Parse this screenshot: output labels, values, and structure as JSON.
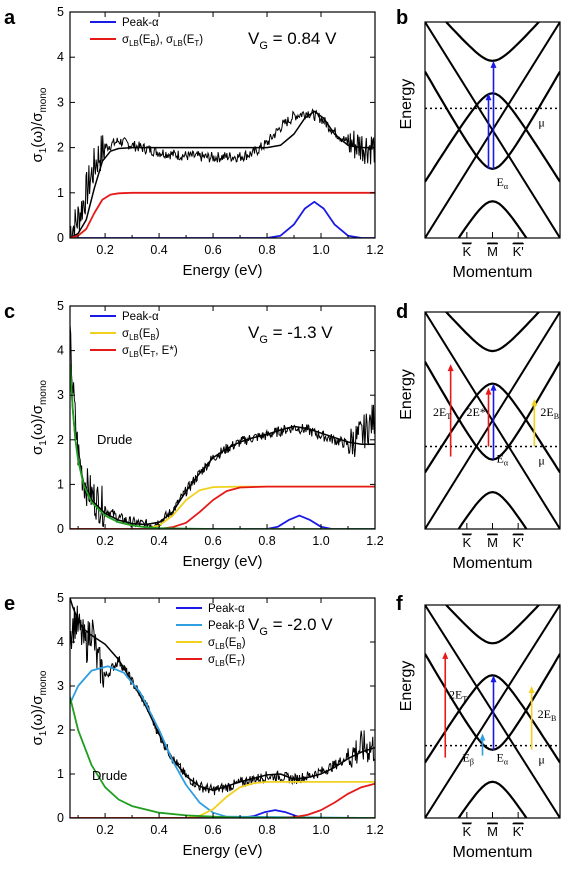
{
  "colors": {
    "black": "#000000",
    "blue": "#1a1ae6",
    "red": "#e61919",
    "yellow": "#f0d21e",
    "green": "#1f9e1f",
    "cyan": "#2f9fe0"
  },
  "chart_data": [
    {
      "panel": "a",
      "type": "line",
      "xlabel": "Energy (eV)",
      "ylabel": "σ1(ω)/σmono",
      "xlim": [
        0.07,
        1.2
      ],
      "ylim": [
        0,
        5
      ],
      "xticks": [
        "0.2",
        "0.4",
        "0.6",
        "0.8",
        "1.0",
        "1.2"
      ],
      "yticks": [
        "0",
        "1",
        "2",
        "3",
        "4",
        "5"
      ],
      "annotation": "VG = 0.84 V",
      "legend": [
        "Peak-α",
        "σLB(EB), σLB(ET)"
      ],
      "series": [
        {
          "name": "Peak-α",
          "color": "blue",
          "x": [
            0.07,
            0.8,
            0.85,
            0.9,
            0.94,
            0.975,
            1.01,
            1.05,
            1.1,
            1.15,
            1.2
          ],
          "y": [
            0,
            0,
            0.05,
            0.3,
            0.65,
            0.8,
            0.65,
            0.3,
            0.05,
            0,
            0
          ]
        },
        {
          "name": "σLB(EB), σLB(ET)",
          "color": "red",
          "x": [
            0.07,
            0.1,
            0.13,
            0.16,
            0.19,
            0.22,
            0.25,
            0.3,
            0.4,
            1.2
          ],
          "y": [
            0,
            0.05,
            0.2,
            0.55,
            0.85,
            0.96,
            0.99,
            1.0,
            1.0,
            1.0
          ]
        },
        {
          "name": "fit",
          "color": "black",
          "x": [
            0.07,
            0.1,
            0.13,
            0.16,
            0.19,
            0.22,
            0.25,
            0.3,
            0.4,
            0.5,
            0.6,
            0.7,
            0.75,
            0.8,
            0.85,
            0.9,
            0.94,
            0.975,
            1.01,
            1.05,
            1.1,
            1.15,
            1.2
          ],
          "y": [
            0,
            0.1,
            0.4,
            1.1,
            1.7,
            1.92,
            1.98,
            2.0,
            2.0,
            2.0,
            2.0,
            2.0,
            2.0,
            2.0,
            2.05,
            2.3,
            2.65,
            2.8,
            2.65,
            2.3,
            2.05,
            2.0,
            2.0
          ]
        },
        {
          "name": "data",
          "color": "black",
          "noisy": true,
          "x": [
            0.07,
            0.09,
            0.11,
            0.13,
            0.15,
            0.17,
            0.2,
            0.25,
            0.3,
            0.35,
            0.4,
            0.45,
            0.5,
            0.55,
            0.6,
            0.65,
            0.7,
            0.75,
            0.8,
            0.85,
            0.9,
            0.95,
            1.0,
            1.05,
            1.1,
            1.15,
            1.2
          ],
          "y": [
            0.2,
            0.3,
            0.6,
            1.0,
            1.4,
            1.75,
            2.0,
            2.15,
            2.05,
            1.98,
            1.9,
            1.85,
            1.82,
            1.8,
            1.78,
            1.8,
            1.8,
            1.88,
            2.1,
            2.45,
            2.7,
            2.78,
            2.65,
            2.35,
            2.1,
            2.05,
            2.0
          ]
        }
      ]
    },
    {
      "panel": "c",
      "type": "line",
      "xlabel": "Energy (eV)",
      "ylabel": "σ1(ω)/σmono",
      "xlim": [
        0.07,
        1.2
      ],
      "ylim": [
        0,
        5
      ],
      "xticks": [
        "0.2",
        "0.4",
        "0.6",
        "0.8",
        "1.0",
        "1.2"
      ],
      "yticks": [
        "0",
        "1",
        "2",
        "3",
        "4",
        "5"
      ],
      "annotation": "VG = -1.3 V",
      "text_label": "Drude",
      "legend": [
        "Peak-α",
        "σLB(EB)",
        "σLB(ET, E*)"
      ],
      "series": [
        {
          "name": "Peak-α",
          "color": "blue",
          "x": [
            0.07,
            0.8,
            0.84,
            0.88,
            0.92,
            0.96,
            1.0,
            1.04,
            1.2
          ],
          "y": [
            0,
            0,
            0.05,
            0.2,
            0.3,
            0.2,
            0.05,
            0,
            0
          ]
        },
        {
          "name": "σLB(EB)",
          "color": "yellow",
          "x": [
            0.07,
            0.35,
            0.4,
            0.45,
            0.5,
            0.55,
            0.6,
            0.7,
            0.8,
            1.2
          ],
          "y": [
            0,
            0,
            0.08,
            0.3,
            0.65,
            0.87,
            0.94,
            0.95,
            0.95,
            0.95
          ]
        },
        {
          "name": "σLB(ET, E*)",
          "color": "red",
          "x": [
            0.07,
            0.4,
            0.45,
            0.5,
            0.55,
            0.6,
            0.65,
            0.7,
            0.8,
            1.2
          ],
          "y": [
            0,
            0,
            0.04,
            0.14,
            0.38,
            0.65,
            0.85,
            0.93,
            0.95,
            0.95
          ]
        },
        {
          "name": "Drude",
          "color": "green",
          "x": [
            0.07,
            0.08,
            0.09,
            0.1,
            0.12,
            0.15,
            0.2,
            0.25,
            0.3,
            0.35,
            0.4,
            0.5,
            0.6,
            1.2
          ],
          "y": [
            3.7,
            2.7,
            2.0,
            1.55,
            1.0,
            0.6,
            0.3,
            0.15,
            0.08,
            0.04,
            0.02,
            0.01,
            0,
            0
          ]
        },
        {
          "name": "fit",
          "color": "black",
          "x": [
            0.07,
            0.08,
            0.09,
            0.1,
            0.12,
            0.15,
            0.2,
            0.25,
            0.3,
            0.35,
            0.4,
            0.45,
            0.5,
            0.55,
            0.6,
            0.65,
            0.7,
            0.75,
            0.8,
            0.85,
            0.9,
            0.95,
            1.0,
            1.05,
            1.1,
            1.15,
            1.2
          ],
          "y": [
            3.7,
            2.7,
            2.0,
            1.6,
            1.05,
            0.65,
            0.35,
            0.2,
            0.12,
            0.1,
            0.15,
            0.38,
            0.85,
            1.25,
            1.6,
            1.8,
            1.95,
            2.05,
            2.12,
            2.22,
            2.3,
            2.25,
            2.15,
            2.05,
            1.95,
            1.9,
            1.9
          ]
        },
        {
          "name": "data",
          "color": "black",
          "noisy": true,
          "x": [
            0.07,
            0.08,
            0.09,
            0.1,
            0.12,
            0.15,
            0.2,
            0.25,
            0.3,
            0.35,
            0.4,
            0.45,
            0.5,
            0.55,
            0.6,
            0.65,
            0.7,
            0.75,
            0.8,
            0.85,
            0.9,
            0.95,
            1.0,
            1.05,
            1.1,
            1.15,
            1.2
          ],
          "y": [
            4.3,
            3.2,
            2.4,
            1.7,
            1.1,
            0.75,
            0.45,
            0.25,
            0.15,
            0.1,
            0.15,
            0.4,
            0.85,
            1.25,
            1.6,
            1.8,
            1.95,
            2.05,
            2.1,
            2.2,
            2.28,
            2.22,
            2.1,
            2.0,
            1.9,
            2.1,
            2.5
          ]
        }
      ]
    },
    {
      "panel": "e",
      "type": "line",
      "xlabel": "Energy (eV)",
      "ylabel": "σ1(ω)/σmono",
      "xlim": [
        0.07,
        1.2
      ],
      "ylim": [
        0,
        5
      ],
      "xticks": [
        "0.2",
        "0.4",
        "0.6",
        "0.8",
        "1.0",
        "1.2"
      ],
      "yticks": [
        "0",
        "1",
        "2",
        "3",
        "4",
        "5"
      ],
      "annotation": "VG = -2.0 V",
      "text_label": "Drude",
      "legend": [
        "Peak-α",
        "Peak-β",
        "σLB(EB)",
        "σLB(ET)"
      ],
      "series": [
        {
          "name": "Peak-α",
          "color": "blue",
          "x": [
            0.07,
            0.7,
            0.75,
            0.79,
            0.83,
            0.87,
            0.91,
            0.96,
            1.2
          ],
          "y": [
            0,
            0,
            0.04,
            0.13,
            0.18,
            0.13,
            0.04,
            0,
            0
          ]
        },
        {
          "name": "Peak-β",
          "color": "cyan",
          "x": [
            0.07,
            0.1,
            0.15,
            0.21,
            0.27,
            0.33,
            0.4,
            0.45,
            0.5,
            0.55,
            0.6,
            0.65,
            1.2
          ],
          "y": [
            2.6,
            3.0,
            3.35,
            3.45,
            3.3,
            2.85,
            2.0,
            1.3,
            0.75,
            0.35,
            0.12,
            0.03,
            0
          ]
        },
        {
          "name": "σLB(EB)",
          "color": "yellow",
          "x": [
            0.07,
            0.5,
            0.55,
            0.6,
            0.65,
            0.7,
            0.75,
            0.8,
            0.9,
            1.2
          ],
          "y": [
            0,
            0,
            0.05,
            0.2,
            0.48,
            0.7,
            0.79,
            0.82,
            0.82,
            0.82
          ]
        },
        {
          "name": "σLB(ET)",
          "color": "red",
          "x": [
            0.07,
            0.85,
            0.9,
            0.95,
            1.0,
            1.05,
            1.1,
            1.15,
            1.2
          ],
          "y": [
            0,
            0,
            0.02,
            0.07,
            0.18,
            0.35,
            0.55,
            0.7,
            0.78
          ]
        },
        {
          "name": "Drude",
          "color": "green",
          "x": [
            0.07,
            0.1,
            0.15,
            0.2,
            0.25,
            0.3,
            0.4,
            0.5,
            0.6,
            0.7,
            1.2
          ],
          "y": [
            2.75,
            2.0,
            1.2,
            0.7,
            0.42,
            0.27,
            0.12,
            0.06,
            0.03,
            0.01,
            0
          ]
        },
        {
          "name": "fit",
          "color": "black",
          "x": [
            0.07,
            0.08,
            0.1,
            0.12,
            0.15,
            0.2,
            0.25,
            0.3,
            0.35,
            0.4,
            0.45,
            0.5,
            0.55,
            0.6,
            0.65,
            0.7,
            0.75,
            0.8,
            0.85,
            0.9,
            0.95,
            1.0,
            1.05,
            1.1,
            1.15,
            1.2
          ],
          "y": [
            5.0,
            4.8,
            4.5,
            4.3,
            4.15,
            3.95,
            3.6,
            3.1,
            2.55,
            1.9,
            1.35,
            0.95,
            0.72,
            0.63,
            0.72,
            0.82,
            0.9,
            0.98,
            1.0,
            0.88,
            0.92,
            1.0,
            1.15,
            1.35,
            1.5,
            1.6
          ]
        },
        {
          "name": "data",
          "color": "black",
          "noisy": true,
          "x": [
            0.07,
            0.09,
            0.11,
            0.13,
            0.15,
            0.17,
            0.2,
            0.25,
            0.3,
            0.35,
            0.4,
            0.45,
            0.5,
            0.55,
            0.6,
            0.65,
            0.7,
            0.75,
            0.8,
            0.85,
            0.9,
            0.95,
            1.0,
            1.05,
            1.1,
            1.15,
            1.2
          ],
          "y": [
            4.2,
            4.5,
            4.2,
            3.9,
            4.4,
            3.6,
            3.2,
            3.6,
            3.1,
            2.6,
            1.9,
            1.35,
            0.95,
            0.72,
            0.63,
            0.7,
            0.8,
            0.88,
            0.95,
            0.95,
            0.88,
            0.95,
            1.05,
            1.2,
            1.4,
            1.6,
            1.6
          ]
        }
      ]
    }
  ],
  "panels": {
    "a": {
      "letter": "a",
      "vg": "V",
      "vg_sub": "G",
      "vg_val": " = 0.84 V",
      "legend": [
        {
          "label": "Peak-α",
          "sub": "",
          "sub_after": ""
        },
        {
          "label": "σ",
          "sub": "LB",
          "rest": "(E",
          "sub2": "B",
          "rest2": "), σ",
          "sub3": "LB",
          "rest3": "(E",
          "sub4": "T",
          "rest4": ")"
        }
      ]
    },
    "c": {
      "letter": "c",
      "vg": "V",
      "vg_sub": "G",
      "vg_val": " = -1.3 V"
    },
    "e": {
      "letter": "e",
      "vg": "V",
      "vg_sub": "G",
      "vg_val": " = -2.0 V"
    },
    "b": {
      "letter": "b"
    },
    "d": {
      "letter": "d"
    },
    "f": {
      "letter": "f"
    }
  },
  "diagram": {
    "ylabel": "Energy",
    "xlabel": "Momentum",
    "k_labels": [
      "K",
      "M",
      "K'"
    ],
    "mu": "μ",
    "E_alpha_E": "E",
    "E_alpha_sub": "α",
    "E_beta_sub": "β",
    "two_ET": "2E",
    "ET_sub": "T",
    "two_EB": "2E",
    "EB_sub": "B",
    "two_Estar": "2E*",
    "fermi_level": {
      "b": 0.4,
      "d": 0.62,
      "f": 0.66
    }
  },
  "labels": {
    "energy_axis": "Energy (eV)",
    "drude": "Drude",
    "peak_alpha": "Peak-α",
    "peak_beta": "Peak-β",
    "sigma": "σ",
    "LB": "LB",
    "sub1": "1",
    "omega": "(ω)/σ",
    "mono": "mono"
  }
}
